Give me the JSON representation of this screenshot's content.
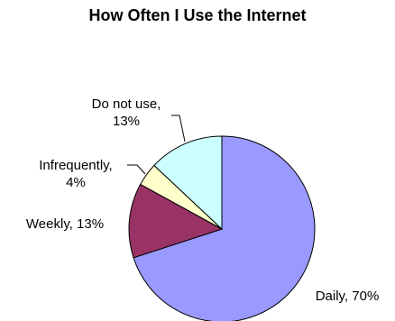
{
  "chart_data": {
    "type": "pie",
    "title": "How Often I Use the Internet",
    "slices": [
      {
        "label": "Daily",
        "value": 70,
        "color": "#9999ff",
        "label_lines": [
          "Daily, 70%"
        ]
      },
      {
        "label": "Weekly",
        "value": 13,
        "color": "#993366",
        "label_lines": [
          "Weekly, 13%"
        ]
      },
      {
        "label": "Infrequently",
        "value": 4,
        "color": "#ffffcc",
        "label_lines": [
          "Infrequently,",
          "4%"
        ]
      },
      {
        "label": "Do not use",
        "value": 13,
        "color": "#ccffff",
        "label_lines": [
          "Do not use,",
          "13%"
        ]
      }
    ]
  }
}
